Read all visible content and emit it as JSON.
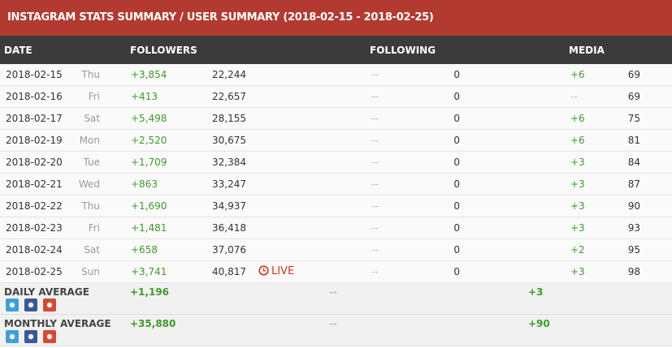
{
  "header": {
    "title": "INSTAGRAM STATS SUMMARY / USER SUMMARY (2018-02-15 - 2018-02-25)"
  },
  "columns": [
    "DATE",
    "FOLLOWERS",
    "FOLLOWING",
    "MEDIA"
  ],
  "rows": [
    {
      "date": "2018-02-15",
      "day": "Thu",
      "followers_change": "+3,854",
      "followers": "22,244",
      "following_change": "--",
      "following": "0",
      "media_change": "+6",
      "media": "69"
    },
    {
      "date": "2018-02-16",
      "day": "Fri",
      "followers_change": "+413",
      "followers": "22,657",
      "following_change": "--",
      "following": "0",
      "media_change": "--",
      "media": "69"
    },
    {
      "date": "2018-02-17",
      "day": "Sat",
      "followers_change": "+5,498",
      "followers": "28,155",
      "following_change": "--",
      "following": "0",
      "media_change": "+6",
      "media": "75"
    },
    {
      "date": "2018-02-19",
      "day": "Mon",
      "followers_change": "+2,520",
      "followers": "30,675",
      "following_change": "--",
      "following": "0",
      "media_change": "+6",
      "media": "81"
    },
    {
      "date": "2018-02-20",
      "day": "Tue",
      "followers_change": "+1,709",
      "followers": "32,384",
      "following_change": "--",
      "following": "0",
      "media_change": "+3",
      "media": "84"
    },
    {
      "date": "2018-02-21",
      "day": "Wed",
      "followers_change": "+863",
      "followers": "33,247",
      "following_change": "--",
      "following": "0",
      "media_change": "+3",
      "media": "87"
    },
    {
      "date": "2018-02-22",
      "day": "Thu",
      "followers_change": "+1,690",
      "followers": "34,937",
      "following_change": "--",
      "following": "0",
      "media_change": "+3",
      "media": "90"
    },
    {
      "date": "2018-02-23",
      "day": "Fri",
      "followers_change": "+1,481",
      "followers": "36,418",
      "following_change": "--",
      "following": "0",
      "media_change": "+3",
      "media": "93"
    },
    {
      "date": "2018-02-24",
      "day": "Sat",
      "followers_change": "+658",
      "followers": "37,076",
      "following_change": "--",
      "following": "0",
      "media_change": "+2",
      "media": "95"
    },
    {
      "date": "2018-02-25",
      "day": "Sun",
      "followers_change": "+3,741",
      "followers": "40,817",
      "status": "LIVE",
      "following_change": "--",
      "following": "0",
      "media_change": "+3",
      "media": "98"
    }
  ],
  "averages": [
    {
      "label": "DAILY AVERAGE",
      "followers": "+1,196",
      "following": "--",
      "media": "+3"
    },
    {
      "label": "MONTHLY AVERAGE",
      "followers": "+35,880",
      "following": "--",
      "media": "+90"
    }
  ]
}
